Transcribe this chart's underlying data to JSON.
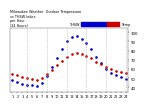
{
  "title": "Milwaukee Weather  Outdoor Temperature\nvs THSW Index\nper Hour\n(24 Hours)",
  "hours": [
    1,
    2,
    3,
    4,
    5,
    6,
    7,
    8,
    9,
    10,
    11,
    12,
    13,
    14,
    15,
    16,
    17,
    18,
    19,
    20,
    21,
    22,
    23,
    24
  ],
  "temp_values": [
    55,
    53,
    51,
    50,
    49,
    48,
    50,
    54,
    59,
    64,
    69,
    73,
    76,
    77,
    76,
    74,
    72,
    68,
    65,
    62,
    60,
    58,
    57,
    56
  ],
  "thsw_values": [
    48,
    46,
    44,
    43,
    42,
    41,
    45,
    52,
    62,
    72,
    82,
    90,
    95,
    96,
    93,
    88,
    82,
    73,
    66,
    60,
    56,
    53,
    51,
    49
  ],
  "temp_color": "#cc0000",
  "thsw_color": "#0000cc",
  "bg_color": "#ffffff",
  "grid_color": "#aaaaaa",
  "ylim_min": 35,
  "ylim_max": 105,
  "ytick_values": [
    40,
    50,
    60,
    70,
    80,
    90,
    100
  ],
  "grid_hours": [
    4,
    8,
    12,
    16,
    20,
    24
  ],
  "marker_size": 1.8,
  "legend_temp_label": "Temp",
  "legend_thsw_label": "THSW"
}
